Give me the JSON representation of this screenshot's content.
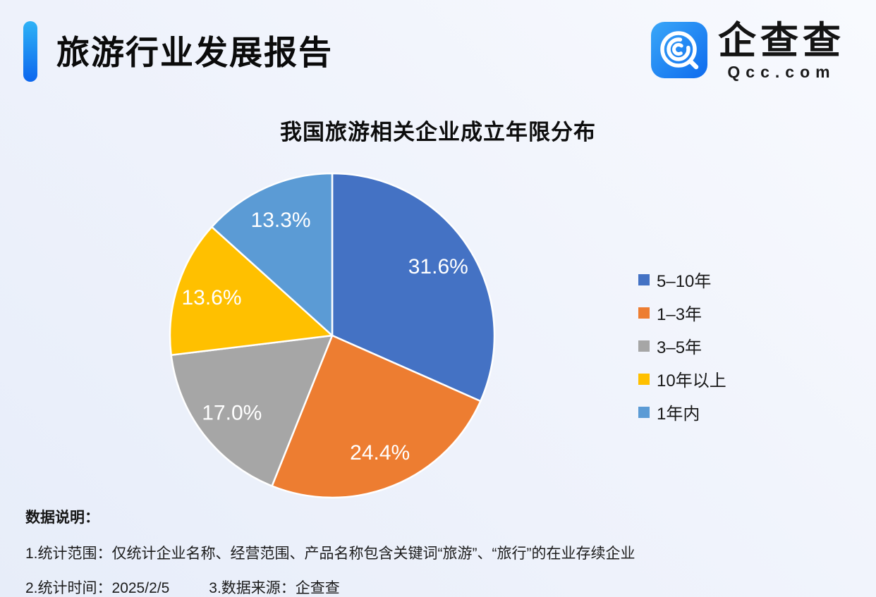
{
  "header": {
    "title": "旅游行业发展报告",
    "accent_color_top": "#2fb3f6",
    "accent_color_bottom": "#0c66ee",
    "logo": {
      "name": "企查查",
      "domain": "Qcc.com",
      "icon": "qcc-magnifier-icon",
      "icon_color": "#1a85f4"
    }
  },
  "chart_data": {
    "type": "pie",
    "title": "我国旅游相关企业成立年限分布",
    "categories": [
      "5–10年",
      "1–3年",
      "3–5年",
      "10年以上",
      "1年内"
    ],
    "values": [
      31.6,
      24.4,
      17.0,
      13.6,
      13.3
    ],
    "labels": [
      "31.6%",
      "24.4%",
      "17.0%",
      "13.6%",
      "13.3%"
    ],
    "colors": [
      "#4472c4",
      "#ed7d31",
      "#a6a6a6",
      "#ffc000",
      "#5b9bd5"
    ],
    "start_angle_deg": 0,
    "direction": "clockwise",
    "label_color": "#ffffff",
    "slice_divider_color": "#ffffff",
    "legend_position": "right"
  },
  "notes": {
    "heading": "数据说明：",
    "scope": "1.统计范围：仅统计企业名称、经营范围、产品名称包含关键词“旅游”、“旅行”的在业存续企业",
    "date": "2.统计时间：2025/2/5",
    "source": "3.数据来源：企查查"
  }
}
